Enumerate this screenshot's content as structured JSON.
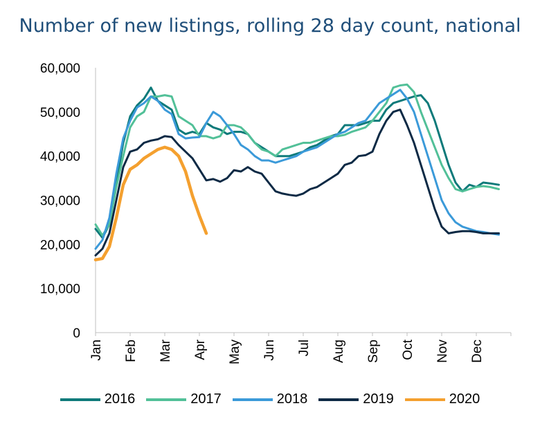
{
  "chart_data": {
    "type": "line",
    "title": "Number of new listings, rolling 28 day count, national",
    "xlabel": "",
    "ylabel": "",
    "ylim": [
      0,
      60000
    ],
    "yticks": [
      "60,000",
      "50,000",
      "40,000",
      "30,000",
      "20,000",
      "10,000",
      "0"
    ],
    "ytick_values": [
      60000,
      50000,
      40000,
      30000,
      20000,
      10000,
      0
    ],
    "categories": [
      "Jan",
      "Feb",
      "Mar",
      "Apr",
      "May",
      "Jun",
      "Jul",
      "Aug",
      "Sep",
      "Oct",
      "Nov",
      "Dec"
    ],
    "grid": false,
    "legend_position": "bottom",
    "series": [
      {
        "name": "2016",
        "color": "#0e7a7a",
        "x": [
          0.0,
          0.2,
          0.4,
          0.6,
          0.8,
          1.0,
          1.2,
          1.4,
          1.6,
          1.8,
          2.0,
          2.2,
          2.4,
          2.6,
          2.8,
          3.0,
          3.2,
          3.4,
          3.6,
          3.8,
          4.0,
          4.2,
          4.4,
          4.6,
          4.8,
          5.0,
          5.2,
          5.4,
          5.6,
          5.8,
          6.0,
          6.2,
          6.4,
          6.6,
          6.8,
          7.0,
          7.2,
          7.4,
          7.6,
          7.8,
          8.0,
          8.2,
          8.4,
          8.6,
          8.8,
          9.0,
          9.2,
          9.4,
          9.6,
          9.8,
          10.0,
          10.2,
          10.4,
          10.6,
          10.8,
          11.0,
          11.2,
          11.4,
          11.65
        ],
        "values": [
          23500,
          21500,
          24500,
          34000,
          43000,
          49000,
          51500,
          53000,
          55500,
          52500,
          51500,
          50500,
          46000,
          45000,
          45500,
          45000,
          47500,
          46500,
          46000,
          45000,
          45500,
          45500,
          45000,
          43000,
          42000,
          41000,
          40000,
          40000,
          40000,
          40500,
          41000,
          42000,
          42500,
          43500,
          44500,
          45000,
          47000,
          47000,
          47000,
          47500,
          48000,
          48000,
          50500,
          52000,
          52500,
          53000,
          53500,
          53800,
          52000,
          48000,
          43000,
          38000,
          34000,
          32000,
          33500,
          33000,
          34000,
          33800,
          33500
        ]
      },
      {
        "name": "2017",
        "color": "#52c098",
        "x": [
          0.0,
          0.2,
          0.4,
          0.6,
          0.8,
          1.0,
          1.2,
          1.4,
          1.6,
          1.8,
          2.0,
          2.2,
          2.4,
          2.6,
          2.8,
          3.0,
          3.2,
          3.4,
          3.6,
          3.8,
          4.0,
          4.2,
          4.4,
          4.6,
          4.8,
          5.0,
          5.2,
          5.4,
          5.6,
          5.8,
          6.0,
          6.2,
          6.4,
          6.6,
          6.8,
          7.0,
          7.2,
          7.4,
          7.6,
          7.8,
          8.0,
          8.2,
          8.4,
          8.6,
          8.8,
          9.0,
          9.2,
          9.4,
          9.6,
          9.8,
          10.0,
          10.2,
          10.4,
          10.6,
          10.8,
          11.0,
          11.2,
          11.4,
          11.65
        ],
        "values": [
          24500,
          22000,
          24500,
          33000,
          40000,
          46500,
          49000,
          50000,
          53500,
          53500,
          53800,
          53500,
          49000,
          48000,
          47000,
          44500,
          44500,
          44000,
          44500,
          47000,
          47000,
          46500,
          45000,
          43000,
          41500,
          41000,
          40000,
          41500,
          42000,
          42500,
          43000,
          43000,
          43500,
          44000,
          44500,
          44500,
          44800,
          45500,
          46000,
          46500,
          48000,
          50000,
          52000,
          55500,
          56000,
          56200,
          54500,
          50000,
          46000,
          42000,
          38000,
          35000,
          32500,
          32000,
          32500,
          33000,
          33200,
          33000,
          32500
        ]
      },
      {
        "name": "2018",
        "color": "#3b9ad9",
        "x": [
          0.0,
          0.2,
          0.4,
          0.6,
          0.8,
          1.0,
          1.2,
          1.4,
          1.6,
          1.8,
          2.0,
          2.2,
          2.4,
          2.6,
          2.8,
          3.0,
          3.2,
          3.4,
          3.6,
          3.8,
          4.0,
          4.2,
          4.4,
          4.6,
          4.8,
          5.0,
          5.2,
          5.4,
          5.6,
          5.8,
          6.0,
          6.2,
          6.4,
          6.6,
          6.8,
          7.0,
          7.2,
          7.4,
          7.6,
          7.8,
          8.0,
          8.2,
          8.4,
          8.6,
          8.8,
          9.0,
          9.2,
          9.4,
          9.6,
          9.8,
          10.0,
          10.2,
          10.4,
          10.6,
          10.8,
          11.0,
          11.2,
          11.4,
          11.65
        ],
        "values": [
          19000,
          21000,
          26000,
          36000,
          44000,
          48000,
          51000,
          52000,
          53500,
          52500,
          50500,
          49500,
          45000,
          44000,
          44200,
          44300,
          47500,
          50000,
          49000,
          47000,
          45000,
          42500,
          41500,
          40000,
          39000,
          39000,
          38500,
          39000,
          39500,
          40000,
          41000,
          41500,
          42000,
          43000,
          44000,
          45000,
          45500,
          46500,
          47500,
          48000,
          50000,
          52000,
          53000,
          54000,
          55000,
          53000,
          50000,
          45000,
          40000,
          35000,
          30000,
          27000,
          25000,
          24000,
          23500,
          23000,
          22800,
          22500,
          22200
        ]
      },
      {
        "name": "2019",
        "color": "#0d2a45",
        "x": [
          0.0,
          0.2,
          0.4,
          0.6,
          0.8,
          1.0,
          1.2,
          1.4,
          1.6,
          1.8,
          2.0,
          2.2,
          2.4,
          2.6,
          2.8,
          3.0,
          3.2,
          3.4,
          3.6,
          3.8,
          4.0,
          4.2,
          4.4,
          4.6,
          4.8,
          5.0,
          5.2,
          5.4,
          5.6,
          5.8,
          6.0,
          6.2,
          6.4,
          6.6,
          6.8,
          7.0,
          7.2,
          7.4,
          7.6,
          7.8,
          8.0,
          8.2,
          8.4,
          8.6,
          8.8,
          9.0,
          9.2,
          9.4,
          9.6,
          9.8,
          10.0,
          10.2,
          10.4,
          10.6,
          10.8,
          11.0,
          11.2,
          11.4,
          11.65
        ],
        "values": [
          17500,
          19000,
          22500,
          30000,
          37500,
          41000,
          41500,
          43000,
          43500,
          43800,
          44500,
          44300,
          42500,
          41000,
          39500,
          37000,
          34500,
          34800,
          34200,
          35000,
          36800,
          36500,
          37500,
          36500,
          36000,
          34000,
          32000,
          31500,
          31200,
          31000,
          31500,
          32500,
          33000,
          34000,
          35000,
          36000,
          38000,
          38500,
          40000,
          40200,
          41000,
          45000,
          48000,
          50000,
          50500,
          47000,
          43000,
          38000,
          33000,
          28000,
          24000,
          22500,
          22800,
          23000,
          23000,
          22800,
          22500,
          22500,
          22500
        ]
      },
      {
        "name": "2020",
        "color": "#f4a02f",
        "x": [
          0.0,
          0.2,
          0.4,
          0.6,
          0.8,
          1.0,
          1.2,
          1.4,
          1.6,
          1.8,
          2.0,
          2.2,
          2.4,
          2.6,
          2.8,
          3.0,
          3.2,
          3.4,
          3.6,
          3.8
        ],
        "values": [
          16500,
          16800,
          19500,
          26000,
          33500,
          37000,
          38000,
          39500,
          40500,
          41500,
          42000,
          41500,
          40000,
          36500,
          31000,
          26500,
          22500,
          null,
          null,
          null
        ]
      }
    ]
  }
}
